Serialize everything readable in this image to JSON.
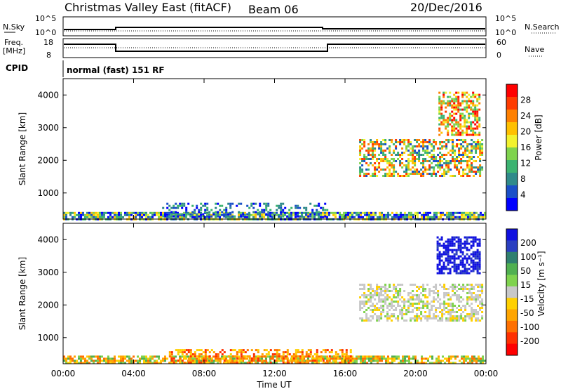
{
  "header": {
    "station": "Christmas Valley East (fitACF)",
    "beam": "Beam 06",
    "date": "20/Dec/2016"
  },
  "panels": {
    "nsky_label": "N.Sky",
    "nsearch_label": "N.Search",
    "freq_label_1": "Freq.",
    "freq_label_2": "[MHz]",
    "nave_label": "Nave",
    "cpid_label": "CPID",
    "mode_text": "normal (fast) 151 RF",
    "nsky_ticks": [
      "10^5",
      "10^0"
    ],
    "nsearch_ticks": [
      "10^5",
      "10^0"
    ],
    "freq_ticks": [
      "18",
      "8"
    ],
    "nave_ticks": [
      "60",
      "0"
    ]
  },
  "chart_data": [
    {
      "type": "heatmap",
      "quantity": "Power",
      "ylabel": "Slant Range [km]",
      "xlabel": "Time UT",
      "x_ticks": [
        "00:00",
        "04:00",
        "08:00",
        "12:00",
        "16:00",
        "20:00",
        "00:00"
      ],
      "xlim_hours": [
        0,
        24
      ],
      "y_ticks": [
        1000,
        2000,
        3000,
        4000
      ],
      "ylim": [
        200,
        4500
      ],
      "colorbar": {
        "label": "Power [dB]",
        "ticks": [
          "4",
          "8",
          "12",
          "16",
          "20",
          "24",
          "28"
        ],
        "colors": [
          "#0000ff",
          "#1a4fc8",
          "#2f8a8a",
          "#3cb371",
          "#7fd34e",
          "#f2f22e",
          "#ffc000",
          "#ff8000",
          "#ff3c00",
          "#ff0000"
        ]
      },
      "regions": [
        {
          "t0": 0.0,
          "t1": 24.0,
          "r0": 200,
          "r1": 420,
          "palette": [
            0,
            1,
            2,
            3,
            4,
            5,
            6
          ],
          "density": 0.8
        },
        {
          "t0": 5.5,
          "t1": 15.0,
          "r0": 300,
          "r1": 700,
          "palette": [
            0,
            1,
            2,
            3
          ],
          "density": 0.35
        },
        {
          "t0": 16.8,
          "t1": 23.8,
          "r0": 1500,
          "r1": 2650,
          "palette": [
            1,
            2,
            3,
            4,
            5,
            6,
            7,
            8
          ],
          "density": 0.55
        },
        {
          "t0": 21.3,
          "t1": 23.6,
          "r0": 2800,
          "r1": 4100,
          "palette": [
            3,
            4,
            5,
            6,
            7,
            8,
            9
          ],
          "density": 0.6
        }
      ]
    },
    {
      "type": "heatmap",
      "quantity": "Velocity",
      "ylabel": "Slant Range [km]",
      "xlabel": "Time UT",
      "x_ticks": [
        "00:00",
        "04:00",
        "08:00",
        "12:00",
        "16:00",
        "20:00",
        "00:00"
      ],
      "xlim_hours": [
        0,
        24
      ],
      "y_ticks": [
        1000,
        2000,
        3000,
        4000
      ],
      "ylim": [
        200,
        4500
      ],
      "colorbar": {
        "label": "Velocity [m s⁻¹]",
        "ticks": [
          "200",
          "100",
          "50",
          "15",
          "-15",
          "-50",
          "-100",
          "-200"
        ],
        "colors": [
          "#1010e0",
          "#2a3fc0",
          "#2f7f6f",
          "#50b050",
          "#7fd34e",
          "#c8c8c8",
          "#ffd000",
          "#ffa500",
          "#ff7000",
          "#ff3000",
          "#ff0000"
        ]
      },
      "regions": [
        {
          "t0": 0.0,
          "t1": 24.0,
          "r0": 200,
          "r1": 450,
          "palette": [
            3,
            4,
            6,
            7,
            8
          ],
          "density": 0.75
        },
        {
          "t0": 6.0,
          "t1": 16.5,
          "r0": 250,
          "r1": 650,
          "palette": [
            6,
            7,
            8,
            9
          ],
          "density": 0.45
        },
        {
          "t0": 16.8,
          "t1": 23.8,
          "r0": 1500,
          "r1": 2650,
          "palette": [
            5,
            5,
            5,
            4,
            6
          ],
          "density": 0.55
        },
        {
          "t0": 21.2,
          "t1": 23.6,
          "r0": 3000,
          "r1": 4100,
          "palette": [
            0,
            0,
            0,
            1
          ],
          "density": 0.65
        }
      ]
    }
  ]
}
